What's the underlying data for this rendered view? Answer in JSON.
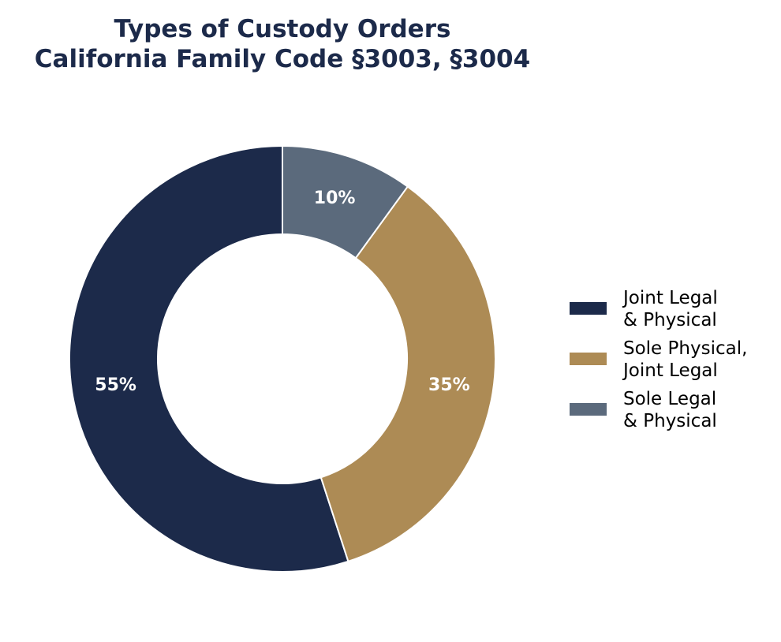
{
  "chart_data": {
    "type": "pie",
    "style": "donut",
    "title_lines": [
      "Types of Custody Orders",
      "California Family Code §3003, §3004"
    ],
    "slices": [
      {
        "label_lines": [
          "Joint Legal",
          "& Physical"
        ],
        "value": 55,
        "display": "55%",
        "color": "#1c2a4a"
      },
      {
        "label_lines": [
          "Sole Physical,",
          "Joint Legal"
        ],
        "value": 35,
        "display": "35%",
        "color": "#ad8b55"
      },
      {
        "label_lines": [
          "Sole Legal",
          "& Physical"
        ],
        "value": 10,
        "display": "10%",
        "color": "#5b6a7c"
      }
    ],
    "direction": "counterclockwise",
    "start": "top",
    "legend_position": "right"
  }
}
